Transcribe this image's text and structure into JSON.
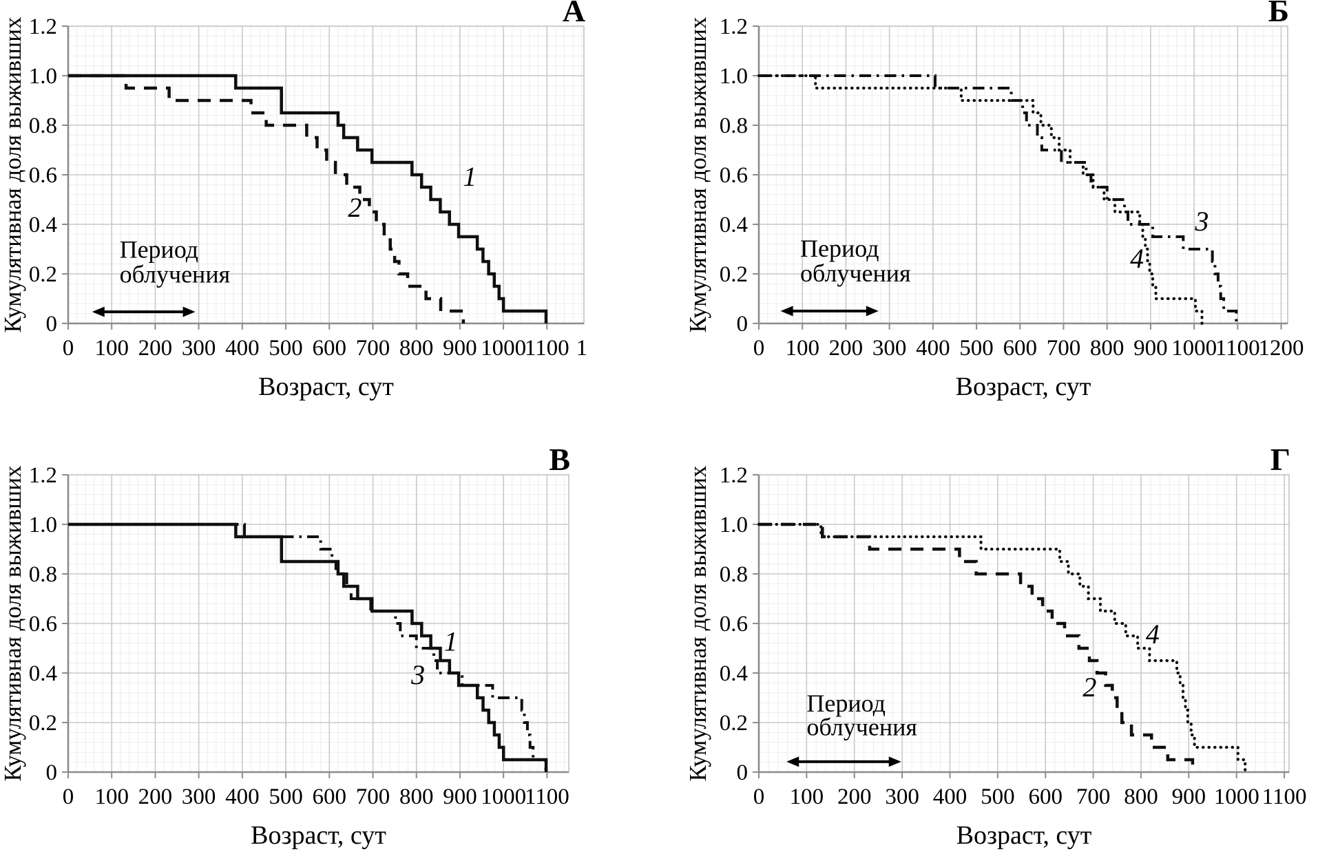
{
  "page": {
    "background": "#ffffff"
  },
  "styles": {
    "curve_color": "#0f0f0f",
    "grid_major_color": "#c9c9c9",
    "grid_minor_color": "#ededed",
    "axis_color": "#8c8c8c",
    "text_color": "#000000"
  },
  "chart_data": [
    {
      "type": "line",
      "panel_label": "А",
      "xlabel": "Возраст, сут",
      "ylabel": "Кумулятивная доля выживших",
      "xlim": [
        0,
        1185
      ],
      "x_ticks": [
        0,
        100,
        200,
        300,
        400,
        500,
        600,
        700,
        800,
        900,
        1000,
        1100
      ],
      "x_tick_extra": {
        "x": 1180,
        "label": "1"
      },
      "ylim": [
        0,
        1.2
      ],
      "y_ticks": [
        0,
        0.2,
        0.4,
        0.6,
        0.8,
        1.0,
        1.2
      ],
      "y_tick_labels": [
        "0",
        "0.2",
        "0.4",
        "0.6",
        "0.8",
        "1.0",
        "1.2"
      ],
      "grid": {
        "major_x": 100,
        "minor_x": 20,
        "major_y": 0.2,
        "minor_y": 0.04
      },
      "annotation": {
        "show": true,
        "lines": [
          "Период",
          "облучения"
        ],
        "text_x": 118,
        "line1_y": 0.265,
        "line2_y": 0.165,
        "arrow_x1": 55,
        "arrow_x2": 292,
        "arrow_y": 0.047
      },
      "series": [
        {
          "name": "2",
          "style": "dashed",
          "label": {
            "x": 643,
            "y": 0.43
          },
          "steps": [
            [
              0,
              1.0
            ],
            [
              133,
              0.95
            ],
            [
              232,
              0.9
            ],
            [
              420,
              0.85
            ],
            [
              455,
              0.8
            ],
            [
              548,
              0.75
            ],
            [
              572,
              0.7
            ],
            [
              594,
              0.65
            ],
            [
              614,
              0.6
            ],
            [
              640,
              0.55
            ],
            [
              670,
              0.5
            ],
            [
              692,
              0.45
            ],
            [
              708,
              0.4
            ],
            [
              726,
              0.35
            ],
            [
              740,
              0.3
            ],
            [
              750,
              0.25
            ],
            [
              760,
              0.2
            ],
            [
              780,
              0.15
            ],
            [
              822,
              0.1
            ],
            [
              856,
              0.05
            ],
            [
              908,
              0
            ]
          ]
        },
        {
          "name": "1",
          "style": "solid",
          "label": {
            "x": 907,
            "y": 0.555
          },
          "steps": [
            [
              0,
              1.0
            ],
            [
              385,
              0.95
            ],
            [
              490,
              0.85
            ],
            [
              620,
              0.8
            ],
            [
              633,
              0.75
            ],
            [
              665,
              0.7
            ],
            [
              698,
              0.65
            ],
            [
              790,
              0.6
            ],
            [
              812,
              0.55
            ],
            [
              833,
              0.5
            ],
            [
              855,
              0.45
            ],
            [
              876,
              0.4
            ],
            [
              897,
              0.35
            ],
            [
              940,
              0.3
            ],
            [
              953,
              0.25
            ],
            [
              966,
              0.2
            ],
            [
              979,
              0.15
            ],
            [
              990,
              0.1
            ],
            [
              1000,
              0.05
            ],
            [
              1098,
              0
            ]
          ]
        }
      ]
    },
    {
      "type": "line",
      "panel_label": "Б",
      "xlabel": "Возраст, сут",
      "ylabel": "Кумулятивная доля выживших",
      "xlim": [
        0,
        1215
      ],
      "x_ticks": [
        0,
        100,
        200,
        300,
        400,
        500,
        600,
        700,
        800,
        900,
        1000,
        1100,
        1200
      ],
      "ylim": [
        0,
        1.2
      ],
      "y_ticks": [
        0,
        0.2,
        0.4,
        0.6,
        0.8,
        1.0,
        1.2
      ],
      "y_tick_labels": [
        "0",
        "0.2",
        "0.4",
        "0.6",
        "0.8",
        "1.0",
        "1.2"
      ],
      "grid": {
        "major_x": 100,
        "minor_x": 20,
        "major_y": 0.2,
        "minor_y": 0.04
      },
      "annotation": {
        "show": true,
        "lines": [
          "Период",
          "облучения"
        ],
        "text_x": 95,
        "line1_y": 0.27,
        "line2_y": 0.17,
        "arrow_x1": 50,
        "arrow_x2": 275,
        "arrow_y": 0.05
      },
      "series": [
        {
          "name": "4",
          "style": "dotted",
          "label": {
            "x": 853,
            "y": 0.225
          },
          "steps": [
            [
              0,
              1.0
            ],
            [
              130,
              0.95
            ],
            [
              465,
              0.9
            ],
            [
              630,
              0.85
            ],
            [
              648,
              0.8
            ],
            [
              672,
              0.75
            ],
            [
              690,
              0.7
            ],
            [
              715,
              0.65
            ],
            [
              745,
              0.6
            ],
            [
              768,
              0.55
            ],
            [
              793,
              0.5
            ],
            [
              818,
              0.45
            ],
            [
              875,
              0.4
            ],
            [
              882,
              0.35
            ],
            [
              888,
              0.3
            ],
            [
              893,
              0.25
            ],
            [
              898,
              0.2
            ],
            [
              905,
              0.15
            ],
            [
              912,
              0.1
            ],
            [
              1003,
              0.05
            ],
            [
              1018,
              0
            ]
          ]
        },
        {
          "name": "3",
          "style": "dash-dot",
          "label": {
            "x": 1002,
            "y": 0.375
          },
          "steps": [
            [
              0,
              1.0
            ],
            [
              405,
              0.95
            ],
            [
              580,
              0.9
            ],
            [
              606,
              0.85
            ],
            [
              615,
              0.8
            ],
            [
              640,
              0.75
            ],
            [
              650,
              0.7
            ],
            [
              695,
              0.65
            ],
            [
              752,
              0.6
            ],
            [
              763,
              0.55
            ],
            [
              800,
              0.5
            ],
            [
              840,
              0.45
            ],
            [
              848,
              0.4
            ],
            [
              905,
              0.35
            ],
            [
              975,
              0.3
            ],
            [
              1042,
              0.25
            ],
            [
              1048,
              0.2
            ],
            [
              1055,
              0.15
            ],
            [
              1061,
              0.1
            ],
            [
              1068,
              0.05
            ],
            [
              1097,
              0
            ]
          ]
        }
      ]
    },
    {
      "type": "line",
      "panel_label": "В",
      "xlabel": "Возраст, сут",
      "ylabel": "Кумулятивная доля выживших",
      "xlim": [
        0,
        1150
      ],
      "x_ticks": [
        0,
        100,
        200,
        300,
        400,
        500,
        600,
        700,
        800,
        900,
        1000,
        1100
      ],
      "ylim": [
        0,
        1.2
      ],
      "y_ticks": [
        0,
        0.2,
        0.4,
        0.6,
        0.8,
        1.0,
        1.2
      ],
      "y_tick_labels": [
        "0",
        "0.2",
        "0.4",
        "0.6",
        "0.8",
        "1.0",
        "1.2"
      ],
      "grid": {
        "major_x": 100,
        "minor_x": 20,
        "major_y": 0.2,
        "minor_y": 0.04
      },
      "annotation": {
        "show": false
      },
      "series": [
        {
          "name": "3",
          "style": "dash-dot",
          "label": {
            "x": 788,
            "y": 0.355
          },
          "steps": [
            [
              0,
              1.0
            ],
            [
              405,
              0.95
            ],
            [
              580,
              0.9
            ],
            [
              606,
              0.85
            ],
            [
              615,
              0.8
            ],
            [
              640,
              0.75
            ],
            [
              650,
              0.7
            ],
            [
              695,
              0.65
            ],
            [
              752,
              0.6
            ],
            [
              763,
              0.55
            ],
            [
              800,
              0.5
            ],
            [
              840,
              0.45
            ],
            [
              848,
              0.4
            ],
            [
              905,
              0.35
            ],
            [
              975,
              0.3
            ],
            [
              1042,
              0.25
            ],
            [
              1048,
              0.2
            ],
            [
              1055,
              0.15
            ],
            [
              1061,
              0.1
            ],
            [
              1068,
              0.05
            ],
            [
              1097,
              0
            ]
          ]
        },
        {
          "name": "1",
          "style": "solid",
          "label": {
            "x": 863,
            "y": 0.49
          },
          "steps": [
            [
              0,
              1.0
            ],
            [
              385,
              0.95
            ],
            [
              490,
              0.85
            ],
            [
              620,
              0.8
            ],
            [
              633,
              0.75
            ],
            [
              665,
              0.7
            ],
            [
              698,
              0.65
            ],
            [
              790,
              0.6
            ],
            [
              812,
              0.55
            ],
            [
              833,
              0.5
            ],
            [
              855,
              0.45
            ],
            [
              876,
              0.4
            ],
            [
              897,
              0.35
            ],
            [
              940,
              0.3
            ],
            [
              953,
              0.25
            ],
            [
              966,
              0.2
            ],
            [
              979,
              0.15
            ],
            [
              990,
              0.1
            ],
            [
              1000,
              0.05
            ],
            [
              1098,
              0
            ]
          ]
        }
      ]
    },
    {
      "type": "line",
      "panel_label": "Г",
      "xlabel": "Возраст, сут",
      "ylabel": "Кумулятивная доля выживших",
      "xlim": [
        0,
        1110
      ],
      "x_ticks": [
        0,
        100,
        200,
        300,
        400,
        500,
        600,
        700,
        800,
        900,
        1000,
        1100
      ],
      "ylim": [
        0,
        1.2
      ],
      "y_ticks": [
        0,
        0.2,
        0.4,
        0.6,
        0.8,
        1.0,
        1.2
      ],
      "y_tick_labels": [
        "0",
        "0.2",
        "0.4",
        "0.6",
        "0.8",
        "1.0",
        "1.2"
      ],
      "grid": {
        "major_x": 100,
        "minor_x": 20,
        "major_y": 0.2,
        "minor_y": 0.04
      },
      "annotation": {
        "show": true,
        "lines": [
          "Период",
          "облучения"
        ],
        "text_x": 100,
        "line1_y": 0.245,
        "line2_y": 0.148,
        "arrow_x1": 58,
        "arrow_x2": 298,
        "arrow_y": 0.042
      },
      "series": [
        {
          "name": "4",
          "style": "dotted",
          "label": {
            "x": 810,
            "y": 0.52
          },
          "steps": [
            [
              0,
              1.0
            ],
            [
              130,
              0.95
            ],
            [
              465,
              0.9
            ],
            [
              630,
              0.85
            ],
            [
              648,
              0.8
            ],
            [
              672,
              0.75
            ],
            [
              690,
              0.7
            ],
            [
              715,
              0.65
            ],
            [
              745,
              0.6
            ],
            [
              768,
              0.55
            ],
            [
              793,
              0.5
            ],
            [
              818,
              0.45
            ],
            [
              875,
              0.4
            ],
            [
              882,
              0.35
            ],
            [
              888,
              0.3
            ],
            [
              893,
              0.25
            ],
            [
              898,
              0.2
            ],
            [
              905,
              0.15
            ],
            [
              912,
              0.1
            ],
            [
              1003,
              0.05
            ],
            [
              1018,
              0
            ]
          ]
        },
        {
          "name": "2",
          "style": "dashed",
          "label": {
            "x": 678,
            "y": 0.305
          },
          "steps": [
            [
              0,
              1.0
            ],
            [
              133,
              0.95
            ],
            [
              232,
              0.9
            ],
            [
              420,
              0.85
            ],
            [
              455,
              0.8
            ],
            [
              548,
              0.75
            ],
            [
              572,
              0.7
            ],
            [
              594,
              0.65
            ],
            [
              614,
              0.6
            ],
            [
              640,
              0.55
            ],
            [
              670,
              0.5
            ],
            [
              692,
              0.45
            ],
            [
              708,
              0.4
            ],
            [
              726,
              0.35
            ],
            [
              740,
              0.3
            ],
            [
              750,
              0.25
            ],
            [
              760,
              0.2
            ],
            [
              780,
              0.15
            ],
            [
              822,
              0.1
            ],
            [
              856,
              0.05
            ],
            [
              908,
              0
            ]
          ]
        }
      ]
    }
  ]
}
